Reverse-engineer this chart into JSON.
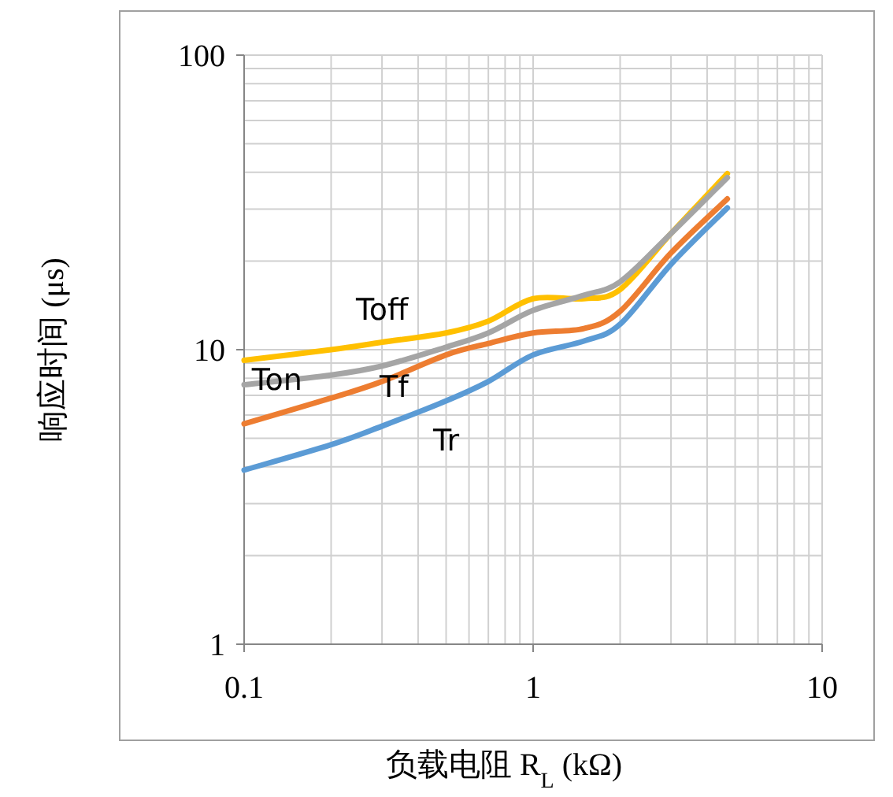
{
  "chart_data": {
    "type": "line",
    "xlabel": "负载电阻 R$_{L}$ (kΩ)",
    "ylabel": "响应时间 (μs)",
    "log": "xy",
    "xlim": [
      0.1,
      10
    ],
    "ylim": [
      1,
      100
    ],
    "xticks": [
      0.1,
      1,
      10
    ],
    "yticks": [
      1,
      10,
      100
    ],
    "grid": true,
    "marker": "none",
    "line_style": "solid",
    "x": [
      0.1,
      0.2,
      0.3,
      0.5,
      0.7,
      1,
      1.5,
      2,
      3,
      4.7
    ],
    "series": [
      {
        "name": "Toff",
        "color": "#ffc000",
        "values": [
          9.2,
          10,
          10.6,
          11.4,
          12.5,
          14.9,
          14.9,
          16,
          24.8,
          39.6
        ]
      },
      {
        "name": "Ton",
        "color": "#a5a5a5",
        "values": [
          7.6,
          8.2,
          8.8,
          10.2,
          11.4,
          13.6,
          15.3,
          17,
          24.8,
          38.4
        ]
      },
      {
        "name": "Tf",
        "color": "#ed7d31",
        "values": [
          5.6,
          6.85,
          7.8,
          9.6,
          10.5,
          11.4,
          11.8,
          13.5,
          21.3,
          32.5
        ]
      },
      {
        "name": "Tr",
        "color": "#5b9bd5",
        "values": [
          3.9,
          4.76,
          5.5,
          6.7,
          7.8,
          9.6,
          10.7,
          12.2,
          19.5,
          30.3
        ]
      }
    ]
  }
}
